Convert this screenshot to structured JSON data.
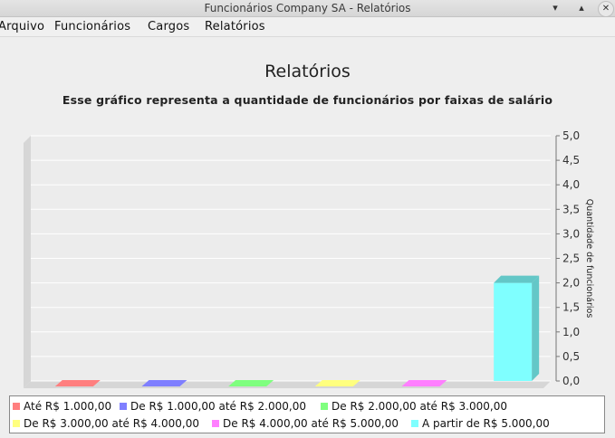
{
  "window": {
    "title": "Funcionários Company SA - Relatórios",
    "minimize_glyph": "▾",
    "maximize_glyph": "▴",
    "close_glyph": "✕"
  },
  "menu": [
    "Arquivo",
    "Funcionários",
    "Cargos",
    "Relatórios"
  ],
  "chart_data": {
    "type": "bar",
    "title": "Relatórios",
    "subtitle": "Esse gráfico representa a quantidade de funcionários por faixas de salário",
    "ylabel": "Quantidade de funcionários",
    "xlabel": "",
    "ylim": [
      0,
      5
    ],
    "y_ticks": [
      "0,0",
      "0,5",
      "1,0",
      "1,5",
      "2,0",
      "2,5",
      "3,0",
      "3,5",
      "4,0",
      "4,5",
      "5,0"
    ],
    "y_axis_side": "right",
    "grid": true,
    "legend_position": "bottom",
    "series": [
      {
        "name": "Até R$ 1.000,00",
        "value": 0,
        "color": "#ff7f7f"
      },
      {
        "name": "De R$ 1.000,00 até R$ 2.000,00",
        "value": 0,
        "color": "#7f7fff"
      },
      {
        "name": "De R$ 2.000,00 até R$ 3.000,00",
        "value": 0,
        "color": "#7fff7f"
      },
      {
        "name": "De R$ 3.000,00 até R$ 4.000,00",
        "value": 0,
        "color": "#ffff7f"
      },
      {
        "name": "De R$ 4.000,00 até R$ 5.000,00",
        "value": 0,
        "color": "#ff7fff"
      },
      {
        "name": "A partir de R$ 5.000,00",
        "value": 2,
        "color": "#7fffff"
      }
    ]
  }
}
